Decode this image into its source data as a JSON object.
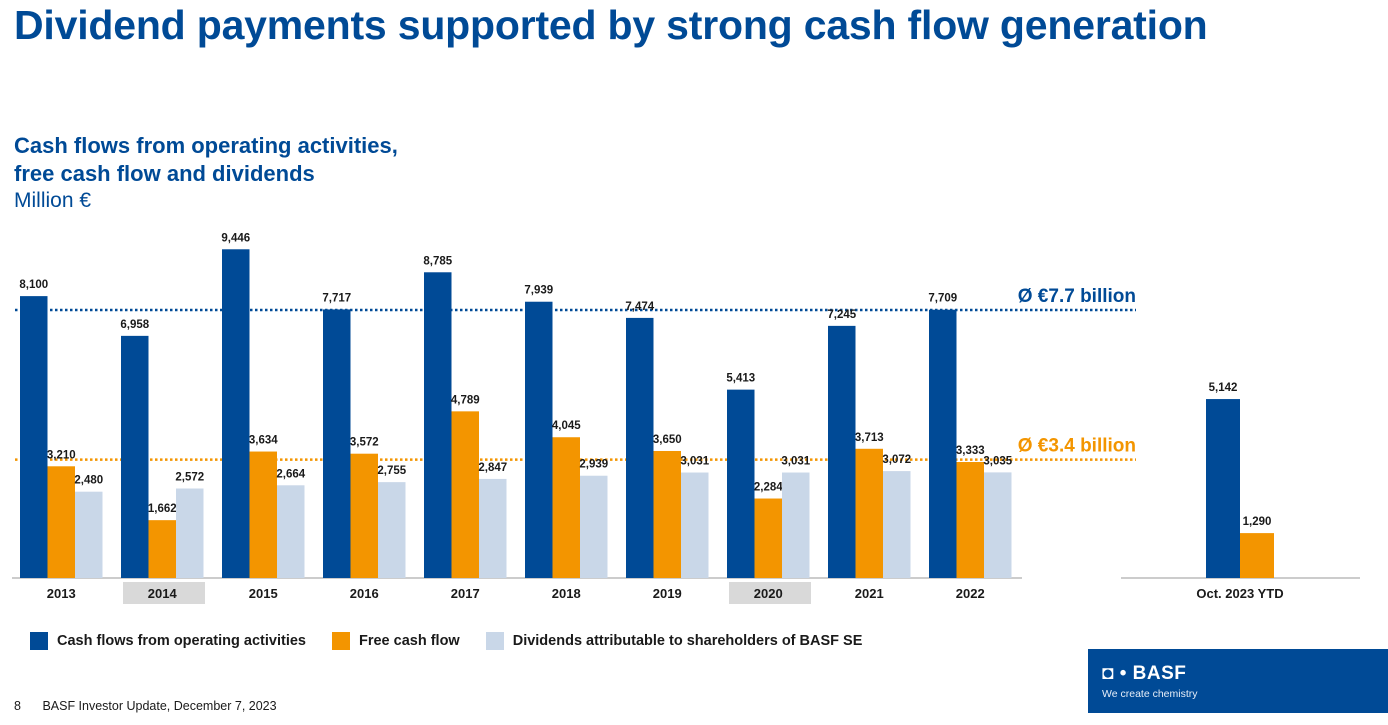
{
  "slide": {
    "title": "Dividend payments supported by strong cash flow generation",
    "subtitle_line1": "Cash flows from operating activities,",
    "subtitle_line2": "free cash flow and dividends",
    "unit": "Million €"
  },
  "chart_data": {
    "type": "bar",
    "categories": [
      "2013",
      "2014",
      "2015",
      "2016",
      "2017",
      "2018",
      "2019",
      "2020",
      "2021",
      "2022",
      "Oct. 2023 YTD"
    ],
    "highlighted_categories": [
      "2014",
      "2020"
    ],
    "ylim": [
      0,
      10000
    ],
    "series": [
      {
        "name": "Cash flows from operating activities",
        "color": "#004a96",
        "values": [
          8100,
          6958,
          9446,
          7717,
          8785,
          7939,
          7474,
          5413,
          7245,
          7709,
          5142
        ]
      },
      {
        "name": "Free cash flow",
        "color": "#f39500",
        "values": [
          3210,
          1662,
          3634,
          3572,
          4789,
          4045,
          3650,
          2284,
          3713,
          3333,
          1290
        ]
      },
      {
        "name": "Dividends attributable to shareholders of BASF SE",
        "color": "#c9d7e8",
        "values": [
          2480,
          2572,
          2664,
          2755,
          2847,
          2939,
          3031,
          3031,
          3072,
          3035,
          null
        ]
      }
    ],
    "reference_lines": [
      {
        "label": "Ø €7.7 billion",
        "value": 7700,
        "color": "#004a96"
      },
      {
        "label": "Ø €3.4 billion",
        "value": 3400,
        "color": "#f39500"
      }
    ],
    "legend_position": "bottom"
  },
  "legend": {
    "items": [
      {
        "label": "Cash flows from operating activities",
        "color": "#004a96"
      },
      {
        "label": "Free cash flow",
        "color": "#f39500"
      },
      {
        "label": "Dividends attributable to shareholders of BASF SE",
        "color": "#c9d7e8"
      }
    ]
  },
  "footer": {
    "page": "8",
    "text": "BASF Investor Update, December 7, 2023"
  },
  "logo": {
    "mark": "◘ • BASF",
    "tagline": "We create chemistry"
  }
}
